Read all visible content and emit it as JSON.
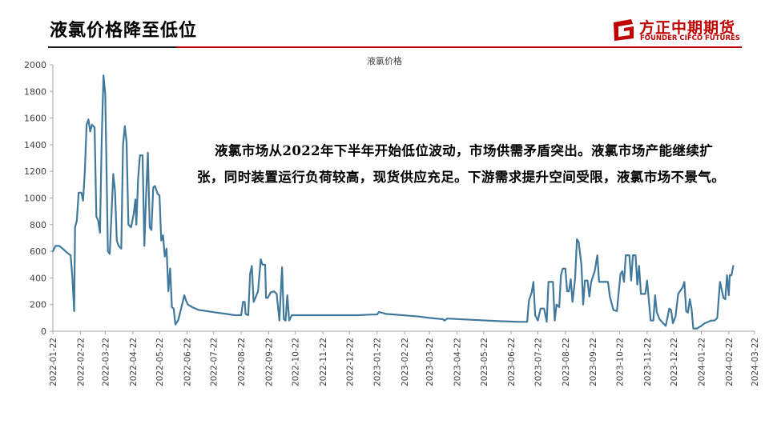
{
  "header": {
    "title": "液氯价格降至低位",
    "brand_cn": "方正中期期货",
    "brand_en": "FOUNDER CIFCO FUTURES",
    "brand_color": "#c00000"
  },
  "annotation": {
    "line1": "液氯市场从2022年下半年开始低位波动，市场供需矛盾突出。液氯市场产能继续扩",
    "line2": "张，同时装置运行负荷较高，现货供应充足。下游需求提升空间受限，液氯市场不景气。"
  },
  "chart_data": {
    "type": "line",
    "title": "液氯价格",
    "xlabel": "",
    "ylabel": "",
    "ylim": [
      0,
      2000
    ],
    "yticks": [
      0,
      200,
      400,
      600,
      800,
      1000,
      1200,
      1400,
      1600,
      1800,
      2000
    ],
    "xlim": [
      "2022-01-22",
      "2024-03-22"
    ],
    "xticks": [
      "2022-01-22",
      "2022-02-22",
      "2022-03-22",
      "2022-04-22",
      "2022-05-22",
      "2022-06-22",
      "2022-07-22",
      "2022-08-22",
      "2022-09-22",
      "2022-10-22",
      "2022-11-22",
      "2022-12-22",
      "2023-01-22",
      "2023-02-22",
      "2023-03-22",
      "2023-04-22",
      "2023-05-22",
      "2023-06-22",
      "2023-07-22",
      "2023-08-22",
      "2023-09-22",
      "2023-10-22",
      "2023-11-22",
      "2023-12-22",
      "2024-01-22",
      "2024-02-22",
      "2024-03-22"
    ],
    "grid": false,
    "series": [
      {
        "color": "#41799c",
        "points": [
          [
            "2022-01-22",
            600
          ],
          [
            "2022-01-25",
            640
          ],
          [
            "2022-01-29",
            640
          ],
          [
            "2022-02-02",
            620
          ],
          [
            "2022-02-07",
            590
          ],
          [
            "2022-02-11",
            570
          ],
          [
            "2022-02-13",
            400
          ],
          [
            "2022-02-15",
            150
          ],
          [
            "2022-02-16",
            780
          ],
          [
            "2022-02-18",
            830
          ],
          [
            "2022-02-20",
            1040
          ],
          [
            "2022-02-23",
            1040
          ],
          [
            "2022-02-25",
            980
          ],
          [
            "2022-02-27",
            1200
          ],
          [
            "2022-03-01",
            1550
          ],
          [
            "2022-03-03",
            1590
          ],
          [
            "2022-03-05",
            1500
          ],
          [
            "2022-03-07",
            1550
          ],
          [
            "2022-03-10",
            1530
          ],
          [
            "2022-03-12",
            860
          ],
          [
            "2022-03-14",
            830
          ],
          [
            "2022-03-16",
            740
          ],
          [
            "2022-03-18",
            1450
          ],
          [
            "2022-03-20",
            1920
          ],
          [
            "2022-03-22",
            1780
          ],
          [
            "2022-03-25",
            600
          ],
          [
            "2022-03-27",
            580
          ],
          [
            "2022-03-31",
            1180
          ],
          [
            "2022-04-02",
            1050
          ],
          [
            "2022-04-04",
            680
          ],
          [
            "2022-04-06",
            640
          ],
          [
            "2022-04-09",
            620
          ],
          [
            "2022-04-11",
            1400
          ],
          [
            "2022-04-13",
            1540
          ],
          [
            "2022-04-15",
            1420
          ],
          [
            "2022-04-17",
            800
          ],
          [
            "2022-04-20",
            780
          ],
          [
            "2022-04-23",
            880
          ],
          [
            "2022-04-25",
            990
          ],
          [
            "2022-04-26",
            800
          ],
          [
            "2022-04-28",
            1150
          ],
          [
            "2022-04-30",
            1320
          ],
          [
            "2022-05-03",
            1320
          ],
          [
            "2022-05-05",
            640
          ],
          [
            "2022-05-07",
            1020
          ],
          [
            "2022-05-09",
            1340
          ],
          [
            "2022-05-11",
            780
          ],
          [
            "2022-05-13",
            760
          ],
          [
            "2022-05-15",
            1080
          ],
          [
            "2022-05-17",
            1090
          ],
          [
            "2022-05-20",
            1030
          ],
          [
            "2022-05-22",
            1020
          ],
          [
            "2022-05-24",
            680
          ],
          [
            "2022-05-26",
            720
          ],
          [
            "2022-05-28",
            560
          ],
          [
            "2022-05-30",
            620
          ],
          [
            "2022-06-01",
            300
          ],
          [
            "2022-06-03",
            470
          ],
          [
            "2022-06-05",
            180
          ],
          [
            "2022-06-07",
            170
          ],
          [
            "2022-06-09",
            50
          ],
          [
            "2022-06-12",
            80
          ],
          [
            "2022-06-15",
            160
          ],
          [
            "2022-06-19",
            270
          ],
          [
            "2022-06-21",
            230
          ],
          [
            "2022-06-23",
            200
          ],
          [
            "2022-06-28",
            180
          ],
          [
            "2022-07-05",
            160
          ],
          [
            "2022-07-15",
            150
          ],
          [
            "2022-07-25",
            140
          ],
          [
            "2022-08-05",
            130
          ],
          [
            "2022-08-15",
            120
          ],
          [
            "2022-08-22",
            120
          ],
          [
            "2022-08-24",
            220
          ],
          [
            "2022-08-26",
            220
          ],
          [
            "2022-08-27",
            130
          ],
          [
            "2022-08-30",
            120
          ],
          [
            "2022-09-01",
            430
          ],
          [
            "2022-09-03",
            490
          ],
          [
            "2022-09-05",
            220
          ],
          [
            "2022-09-07",
            250
          ],
          [
            "2022-09-10",
            300
          ],
          [
            "2022-09-13",
            540
          ],
          [
            "2022-09-15",
            500
          ],
          [
            "2022-09-18",
            500
          ],
          [
            "2022-09-19",
            250
          ],
          [
            "2022-09-21",
            250
          ],
          [
            "2022-09-24",
            290
          ],
          [
            "2022-09-28",
            300
          ],
          [
            "2022-10-01",
            280
          ],
          [
            "2022-10-04",
            80
          ],
          [
            "2022-10-07",
            480
          ],
          [
            "2022-10-09",
            90
          ],
          [
            "2022-10-11",
            80
          ],
          [
            "2022-10-13",
            270
          ],
          [
            "2022-10-15",
            80
          ],
          [
            "2022-10-18",
            120
          ],
          [
            "2022-11-05",
            120
          ],
          [
            "2022-12-01",
            120
          ],
          [
            "2023-01-01",
            120
          ],
          [
            "2023-01-15",
            125
          ],
          [
            "2023-01-22",
            125
          ],
          [
            "2023-01-24",
            145
          ],
          [
            "2023-02-01",
            130
          ],
          [
            "2023-02-20",
            120
          ],
          [
            "2023-03-10",
            110
          ],
          [
            "2023-03-22",
            100
          ],
          [
            "2023-04-06",
            90
          ],
          [
            "2023-04-08",
            80
          ],
          [
            "2023-04-11",
            95
          ],
          [
            "2023-05-10",
            85
          ],
          [
            "2023-06-10",
            75
          ],
          [
            "2023-07-01",
            70
          ],
          [
            "2023-07-10",
            70
          ],
          [
            "2023-07-12",
            230
          ],
          [
            "2023-07-15",
            290
          ],
          [
            "2023-07-17",
            370
          ],
          [
            "2023-07-19",
            120
          ],
          [
            "2023-07-22",
            80
          ],
          [
            "2023-07-25",
            170
          ],
          [
            "2023-07-29",
            170
          ],
          [
            "2023-08-01",
            70
          ],
          [
            "2023-08-03",
            370
          ],
          [
            "2023-08-08",
            370
          ],
          [
            "2023-08-10",
            80
          ],
          [
            "2023-08-12",
            200
          ],
          [
            "2023-08-15",
            180
          ],
          [
            "2023-08-17",
            420
          ],
          [
            "2023-08-19",
            470
          ],
          [
            "2023-08-22",
            470
          ],
          [
            "2023-08-24",
            300
          ],
          [
            "2023-08-26",
            300
          ],
          [
            "2023-08-28",
            390
          ],
          [
            "2023-08-30",
            220
          ],
          [
            "2023-09-02",
            400
          ],
          [
            "2023-09-04",
            690
          ],
          [
            "2023-09-06",
            670
          ],
          [
            "2023-09-09",
            500
          ],
          [
            "2023-09-11",
            200
          ],
          [
            "2023-09-13",
            380
          ],
          [
            "2023-09-16",
            380
          ],
          [
            "2023-09-18",
            260
          ],
          [
            "2023-09-20",
            370
          ],
          [
            "2023-09-24",
            450
          ],
          [
            "2023-09-27",
            570
          ],
          [
            "2023-09-29",
            370
          ],
          [
            "2023-10-05",
            370
          ],
          [
            "2023-10-09",
            370
          ],
          [
            "2023-10-11",
            260
          ],
          [
            "2023-10-15",
            160
          ],
          [
            "2023-10-19",
            150
          ],
          [
            "2023-10-23",
            430
          ],
          [
            "2023-10-25",
            450
          ],
          [
            "2023-10-27",
            370
          ],
          [
            "2023-10-29",
            570
          ],
          [
            "2023-11-02",
            570
          ],
          [
            "2023-11-04",
            380
          ],
          [
            "2023-11-06",
            570
          ],
          [
            "2023-11-09",
            570
          ],
          [
            "2023-11-11",
            350
          ],
          [
            "2023-11-13",
            490
          ],
          [
            "2023-11-15",
            280
          ],
          [
            "2023-11-20",
            280
          ],
          [
            "2023-11-22",
            380
          ],
          [
            "2023-11-24",
            230
          ],
          [
            "2023-11-26",
            80
          ],
          [
            "2023-11-29",
            80
          ],
          [
            "2023-12-01",
            270
          ],
          [
            "2023-12-03",
            140
          ],
          [
            "2023-12-06",
            90
          ],
          [
            "2023-12-10",
            60
          ],
          [
            "2023-12-13",
            40
          ],
          [
            "2023-12-17",
            170
          ],
          [
            "2023-12-19",
            160
          ],
          [
            "2023-12-21",
            60
          ],
          [
            "2023-12-24",
            110
          ],
          [
            "2023-12-27",
            280
          ],
          [
            "2024-01-01",
            330
          ],
          [
            "2024-01-03",
            370
          ],
          [
            "2024-01-05",
            150
          ],
          [
            "2024-01-07",
            140
          ],
          [
            "2024-01-09",
            240
          ],
          [
            "2024-01-11",
            170
          ],
          [
            "2024-01-13",
            20
          ],
          [
            "2024-01-17",
            20
          ],
          [
            "2024-01-22",
            40
          ],
          [
            "2024-01-26",
            60
          ],
          [
            "2024-01-30",
            70
          ],
          [
            "2024-02-02",
            80
          ],
          [
            "2024-02-06",
            80
          ],
          [
            "2024-02-09",
            100
          ],
          [
            "2024-02-12",
            370
          ],
          [
            "2024-02-16",
            250
          ],
          [
            "2024-02-18",
            240
          ],
          [
            "2024-02-20",
            420
          ],
          [
            "2024-02-22",
            270
          ],
          [
            "2024-02-23",
            420
          ],
          [
            "2024-02-25",
            420
          ],
          [
            "2024-02-27",
            490
          ]
        ]
      }
    ]
  }
}
